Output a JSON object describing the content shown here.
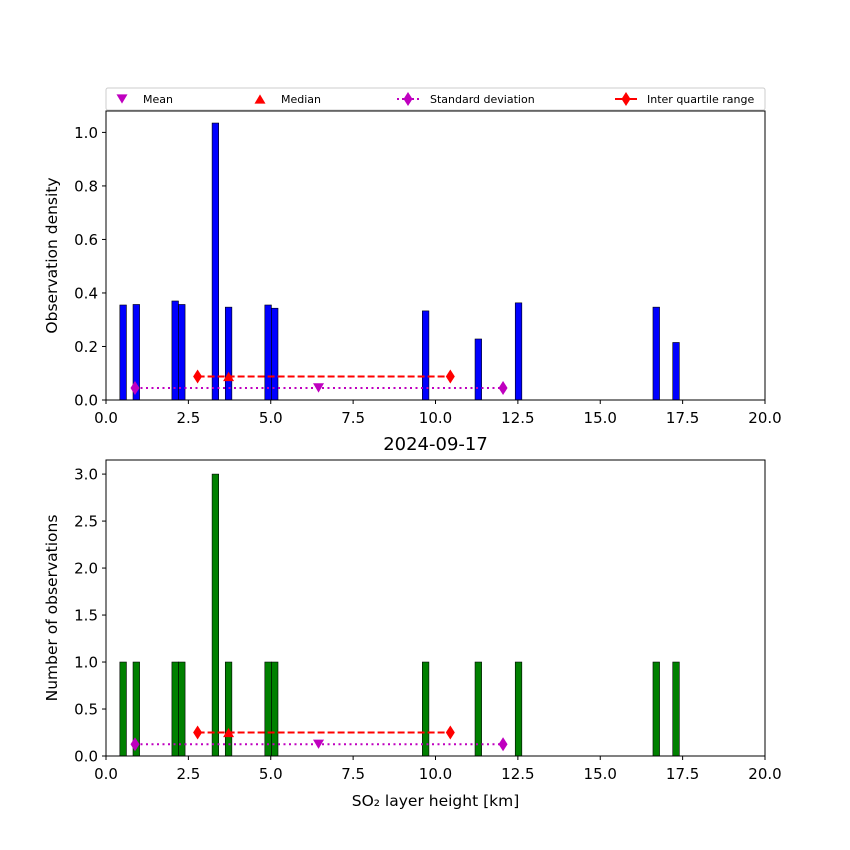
{
  "chart_data": [
    {
      "type": "bar",
      "panel": "top",
      "title": "",
      "xlabel": "",
      "ylabel": "Observation density",
      "xlim": [
        0,
        20
      ],
      "ylim": [
        0,
        1.08
      ],
      "xticks": [
        "0.0",
        "2.5",
        "5.0",
        "7.5",
        "10.0",
        "12.5",
        "15.0",
        "17.5",
        "20.0"
      ],
      "yticks": [
        "0.0",
        "0.2",
        "0.4",
        "0.6",
        "0.8",
        "1.0"
      ],
      "bar_color": "#0000ff",
      "bars": [
        {
          "x": 0.52,
          "value": 0.355
        },
        {
          "x": 0.92,
          "value": 0.357
        },
        {
          "x": 2.1,
          "value": 0.37
        },
        {
          "x": 2.3,
          "value": 0.357
        },
        {
          "x": 3.32,
          "value": 1.035
        },
        {
          "x": 3.72,
          "value": 0.347
        },
        {
          "x": 4.92,
          "value": 0.355
        },
        {
          "x": 5.12,
          "value": 0.343
        },
        {
          "x": 9.7,
          "value": 0.333
        },
        {
          "x": 11.3,
          "value": 0.228
        },
        {
          "x": 12.52,
          "value": 0.363
        },
        {
          "x": 16.7,
          "value": 0.347
        },
        {
          "x": 17.3,
          "value": 0.215
        }
      ],
      "stats": {
        "mean": {
          "x": 6.45,
          "y": 0.045
        },
        "median": {
          "x": 3.72,
          "y": 0.088
        },
        "std_range": {
          "x": [
            0.88,
            12.05
          ],
          "y": 0.045
        },
        "iqr_range": {
          "x": [
            2.78,
            10.45
          ],
          "y": 0.088
        }
      }
    },
    {
      "type": "bar",
      "panel": "bottom",
      "title": "2024-09-17",
      "xlabel": "SO₂ layer height [km]",
      "ylabel": "Number of observations",
      "xlim": [
        0,
        20
      ],
      "ylim": [
        0,
        3.15
      ],
      "xticks": [
        "0.0",
        "2.5",
        "5.0",
        "7.5",
        "10.0",
        "12.5",
        "15.0",
        "17.5",
        "20.0"
      ],
      "yticks": [
        "0.0",
        "0.5",
        "1.0",
        "1.5",
        "2.0",
        "2.5",
        "3.0"
      ],
      "bar_color": "#008000",
      "bars": [
        {
          "x": 0.52,
          "value": 1
        },
        {
          "x": 0.92,
          "value": 1
        },
        {
          "x": 2.1,
          "value": 1
        },
        {
          "x": 2.3,
          "value": 1
        },
        {
          "x": 3.32,
          "value": 3
        },
        {
          "x": 3.72,
          "value": 1
        },
        {
          "x": 4.92,
          "value": 1
        },
        {
          "x": 5.12,
          "value": 1
        },
        {
          "x": 9.7,
          "value": 1
        },
        {
          "x": 11.3,
          "value": 1
        },
        {
          "x": 12.52,
          "value": 1
        },
        {
          "x": 16.7,
          "value": 1
        },
        {
          "x": 17.3,
          "value": 1
        }
      ],
      "stats": {
        "mean": {
          "x": 6.45,
          "y": 0.125
        },
        "median": {
          "x": 3.72,
          "y": 0.25
        },
        "std_range": {
          "x": [
            0.88,
            12.05
          ],
          "y": 0.125
        },
        "iqr_range": {
          "x": [
            2.78,
            10.45
          ],
          "y": 0.25
        }
      }
    }
  ],
  "legend": {
    "placement": "top",
    "items": [
      {
        "label": "Mean",
        "marker": "triangle-down",
        "color": "#bf00bf"
      },
      {
        "label": "Median",
        "marker": "triangle-up",
        "color": "#ff0000"
      },
      {
        "label": "Standard deviation",
        "marker": "diamond",
        "line": "dotted",
        "color": "#bf00bf"
      },
      {
        "label": "Inter quartile range",
        "marker": "diamond",
        "line": "dashed",
        "color": "#ff0000"
      }
    ]
  },
  "colors": {
    "mean": "#bf00bf",
    "median": "#ff0000",
    "std": "#bf00bf",
    "iqr": "#ff0000"
  }
}
